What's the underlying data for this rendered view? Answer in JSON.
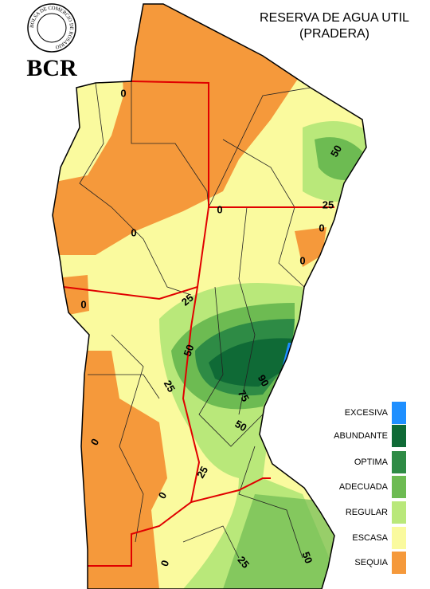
{
  "header": {
    "seal_text": "BOLSA DE COMERCIO DE ROSARIO",
    "logo": "BCR",
    "title": "RESERVA DE AGUA UTIL",
    "subtitle": "(PRADERA)"
  },
  "legend": [
    {
      "label": "EXCESIVA",
      "color": "#1e8fff"
    },
    {
      "label": "ABUNDANTE",
      "color": "#0f6a36"
    },
    {
      "label": "OPTIMA",
      "color": "#2e8b45"
    },
    {
      "label": "ADECUADA",
      "color": "#6dbb52"
    },
    {
      "label": "REGULAR",
      "color": "#b9e87a"
    },
    {
      "label": "ESCASA",
      "color": "#fafa9e"
    },
    {
      "label": "SEQUIA",
      "color": "#f5993b"
    }
  ],
  "contour_labels": [
    "0",
    "50",
    "25",
    "0",
    "0",
    "0",
    "0",
    "25",
    "0",
    "50",
    "25",
    "90",
    "75",
    "50",
    "0",
    "25",
    "0",
    "0",
    "25",
    "50"
  ]
}
